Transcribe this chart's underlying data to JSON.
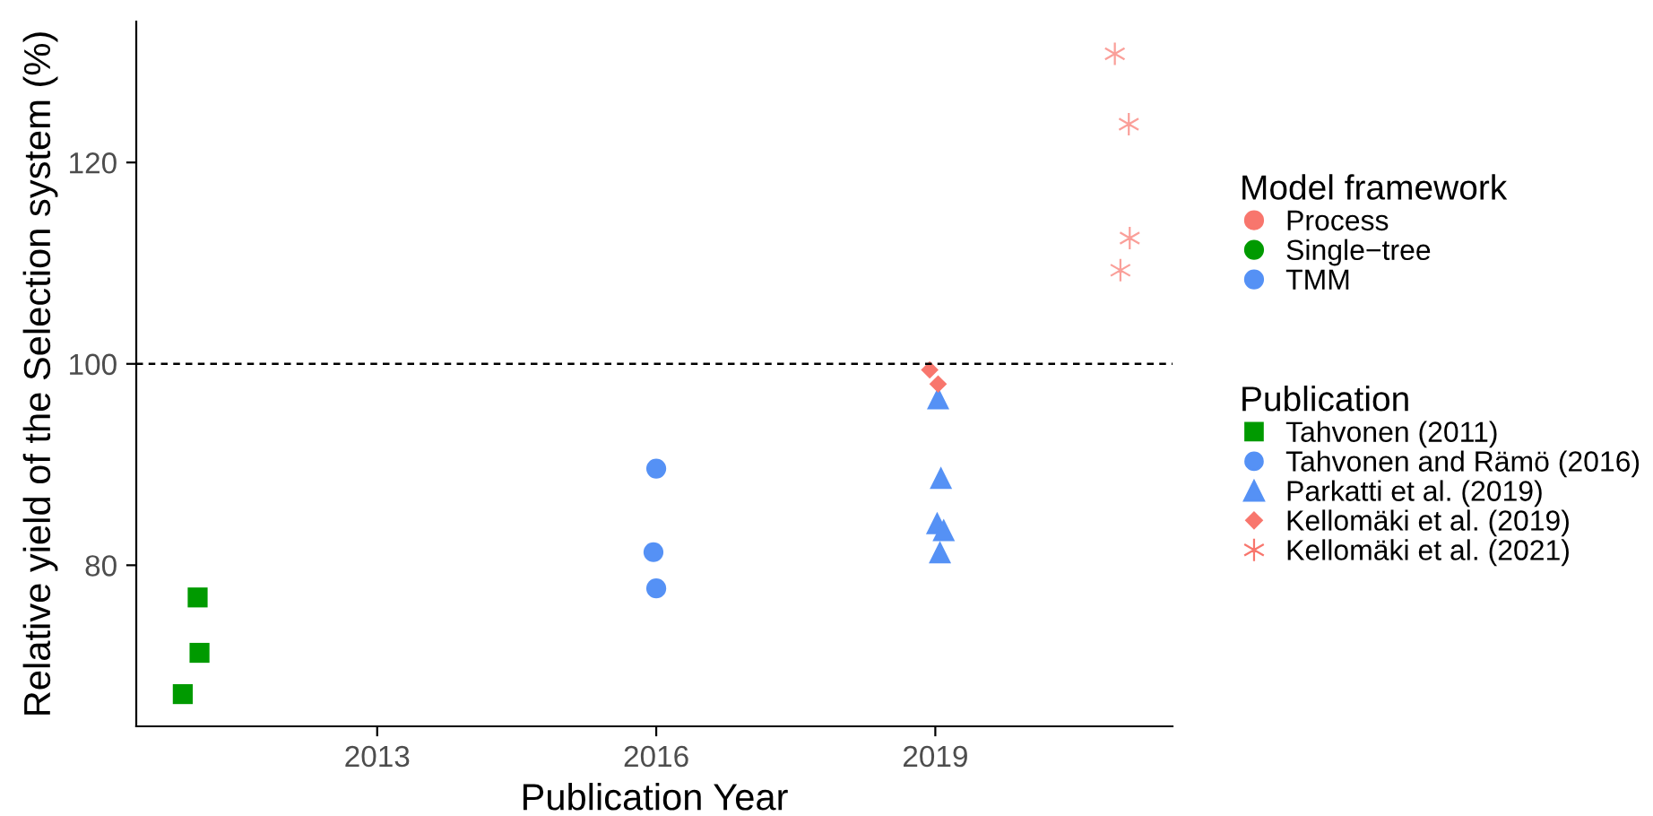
{
  "chart_data": {
    "type": "scatter",
    "xlabel": "Publication Year",
    "ylabel": "Relative yield of the Selection system (%)",
    "xlim": [
      2010.41,
      2021.55
    ],
    "xticks": [
      2013,
      2016,
      2019
    ],
    "ylim": [
      64,
      134
    ],
    "yticks": [
      80,
      100,
      120
    ],
    "grid": false,
    "legend": "right",
    "legend_title": [
      "Model framework",
      "Publication"
    ],
    "annotations": [
      "Process",
      "Single−tree",
      "TMM"
    ],
    "ref_lines": [
      {
        "axis": "y",
        "value": 100,
        "line_style": "dashed",
        "color": "#000000"
      }
    ],
    "series": [
      {
        "name": "Tahvonen (2011)",
        "marker": "square",
        "color": "#009a00",
        "x": [
          2010.91,
          2011.07,
          2011.09
        ],
        "values": [
          67.2,
          76.8,
          71.3
        ]
      },
      {
        "name": "Tahvonen and Rämö (2016)",
        "marker": "circle",
        "color": "#5591f5",
        "x": [
          2016.0,
          2015.97,
          2016.0
        ],
        "values": [
          89.6,
          81.3,
          77.7
        ]
      },
      {
        "name": "Parkatti et al. (2019)",
        "marker": "triangle",
        "color": "#5591f5",
        "x": [
          2019.03,
          2019.06,
          2019.02,
          2019.09,
          2019.05
        ],
        "values": [
          96.6,
          88.7,
          84.2,
          83.5,
          81.3
        ]
      },
      {
        "name": "Kellomäki et al. (2019)",
        "marker": "diamond",
        "color": "#f8766d",
        "x": [
          2018.94,
          2019.03
        ],
        "values": [
          99.4,
          98.0
        ]
      },
      {
        "name": "Kellomäki et al. (2021)",
        "marker": "cross",
        "color": "#f8766d",
        "x": [
          2020.93,
          2021.08,
          2021.09,
          2020.99
        ],
        "values": [
          130.8,
          123.8,
          112.5,
          109.3
        ]
      }
    ]
  }
}
